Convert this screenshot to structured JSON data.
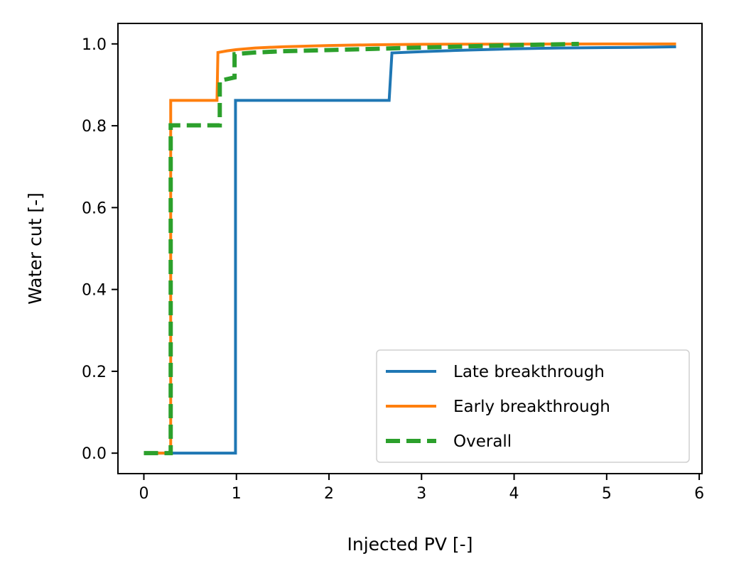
{
  "chart_data": {
    "type": "line",
    "title": "",
    "xlabel": "Injected PV [-]",
    "ylabel": "Water cut [-]",
    "xlim": [
      -0.28,
      6.03
    ],
    "ylim": [
      -0.05,
      1.05
    ],
    "xticks": [
      0,
      1,
      2,
      3,
      4,
      5,
      6
    ],
    "xtick_labels": [
      "0",
      "1",
      "2",
      "3",
      "4",
      "5",
      "6"
    ],
    "yticks": [
      0.0,
      0.2,
      0.4,
      0.6,
      0.8,
      1.0
    ],
    "ytick_labels": [
      "0.0",
      "0.2",
      "0.4",
      "0.6",
      "0.8",
      "1.0"
    ],
    "grid": false,
    "legend_position": "lower-right",
    "series": [
      {
        "name": "Late breakthrough",
        "color": "#1f77b4",
        "style": "solid",
        "x": [
          0,
          0.99,
          0.99,
          2.65,
          2.68,
          3.0,
          3.5,
          4.0,
          4.5,
          5.0,
          5.5,
          5.75
        ],
        "y": [
          0,
          0,
          0.862,
          0.862,
          0.978,
          0.981,
          0.985,
          0.988,
          0.99,
          0.991,
          0.992,
          0.993
        ]
      },
      {
        "name": "Early breakthrough",
        "color": "#ff7f0e",
        "style": "solid",
        "x": [
          0,
          0.29,
          0.29,
          0.79,
          0.8,
          0.9,
          1.0,
          1.2,
          1.5,
          2.0,
          2.5,
          3.0,
          4.0,
          5.0,
          5.75
        ],
        "y": [
          0,
          0,
          0.862,
          0.862,
          0.979,
          0.983,
          0.986,
          0.99,
          0.993,
          0.996,
          0.998,
          0.999,
          0.9995,
          1.0,
          1.0
        ],
        "steps": []
      },
      {
        "name": "Overall",
        "color": "#2ca02c",
        "style": "dashed",
        "x": [
          0,
          0.29,
          0.29,
          0.82,
          0.82,
          0.98,
          0.98,
          1.2,
          1.5,
          2.0,
          2.5,
          3.0,
          3.5,
          4.0,
          4.7
        ],
        "y": [
          0,
          0,
          0.801,
          0.801,
          0.91,
          0.918,
          0.975,
          0.979,
          0.982,
          0.985,
          0.988,
          0.991,
          0.994,
          0.997,
          1.0
        ]
      }
    ]
  }
}
